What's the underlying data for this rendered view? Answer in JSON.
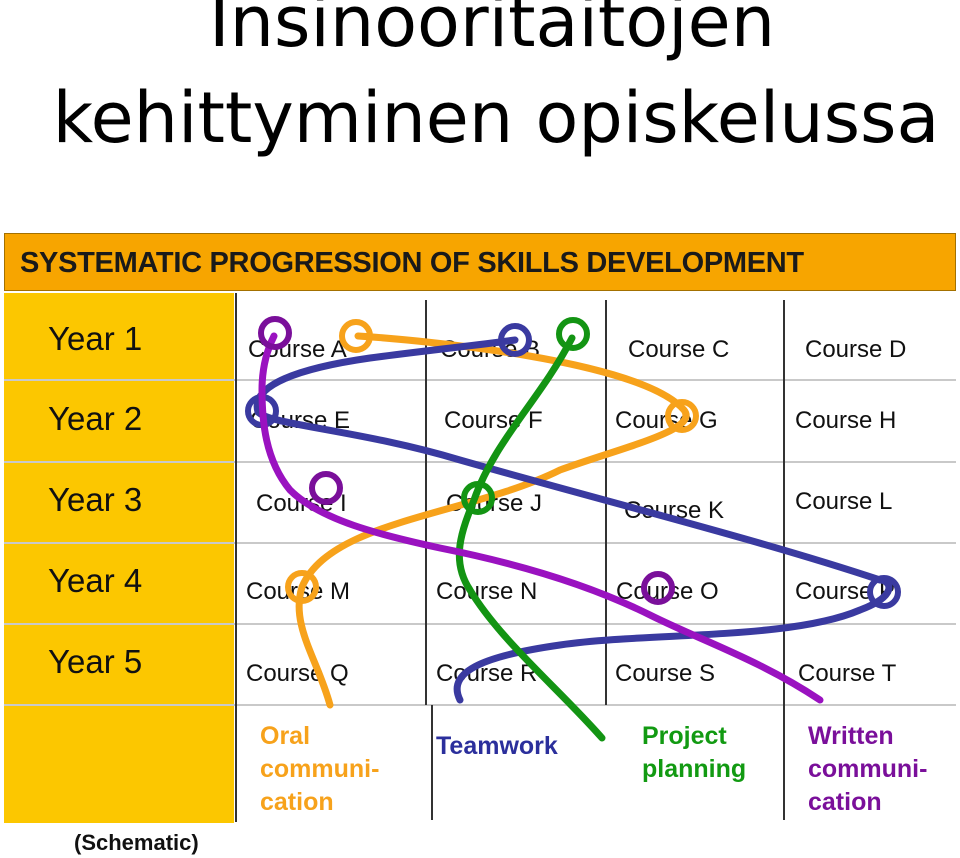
{
  "title": {
    "line1": "Insinööritaitojen",
    "line2": "kehittyminen opiskelussa"
  },
  "diagram": {
    "header": "SYSTEMATIC PROGRESSION OF SKILLS DEVELOPMENT",
    "years": [
      "Year 1",
      "Year 2",
      "Year 3",
      "Year 4",
      "Year 5"
    ],
    "courses": [
      [
        "Course A",
        "Course B",
        "Course C",
        "Course D"
      ],
      [
        "Course E",
        "Course F",
        "Course G",
        "Course H"
      ],
      [
        "Course I",
        "Course J",
        "Course K",
        "Course  L"
      ],
      [
        "Course M",
        "Course N",
        "Course O",
        "Course P"
      ],
      [
        "Course Q",
        "Course R",
        "Course S",
        "Course T"
      ]
    ],
    "skills": [
      {
        "lines": [
          "Oral",
          "communi-",
          "cation"
        ],
        "color": "#f7a21b"
      },
      {
        "lines": [
          "Teamwork"
        ],
        "color": "#2b2f9c"
      },
      {
        "lines": [
          "Project",
          "planning"
        ],
        "color": "#129a12"
      },
      {
        "lines": [
          "Written",
          "communi-",
          "cation"
        ],
        "color": "#7a0f9a"
      }
    ],
    "footnote": "(Schematic)"
  },
  "colors": {
    "header_bg": "#f7a500",
    "year_bg": "#fcc700",
    "oral": "#f7a21b",
    "teamwork": "#3a3aa0",
    "project": "#139413",
    "written": "#9a12c0"
  }
}
